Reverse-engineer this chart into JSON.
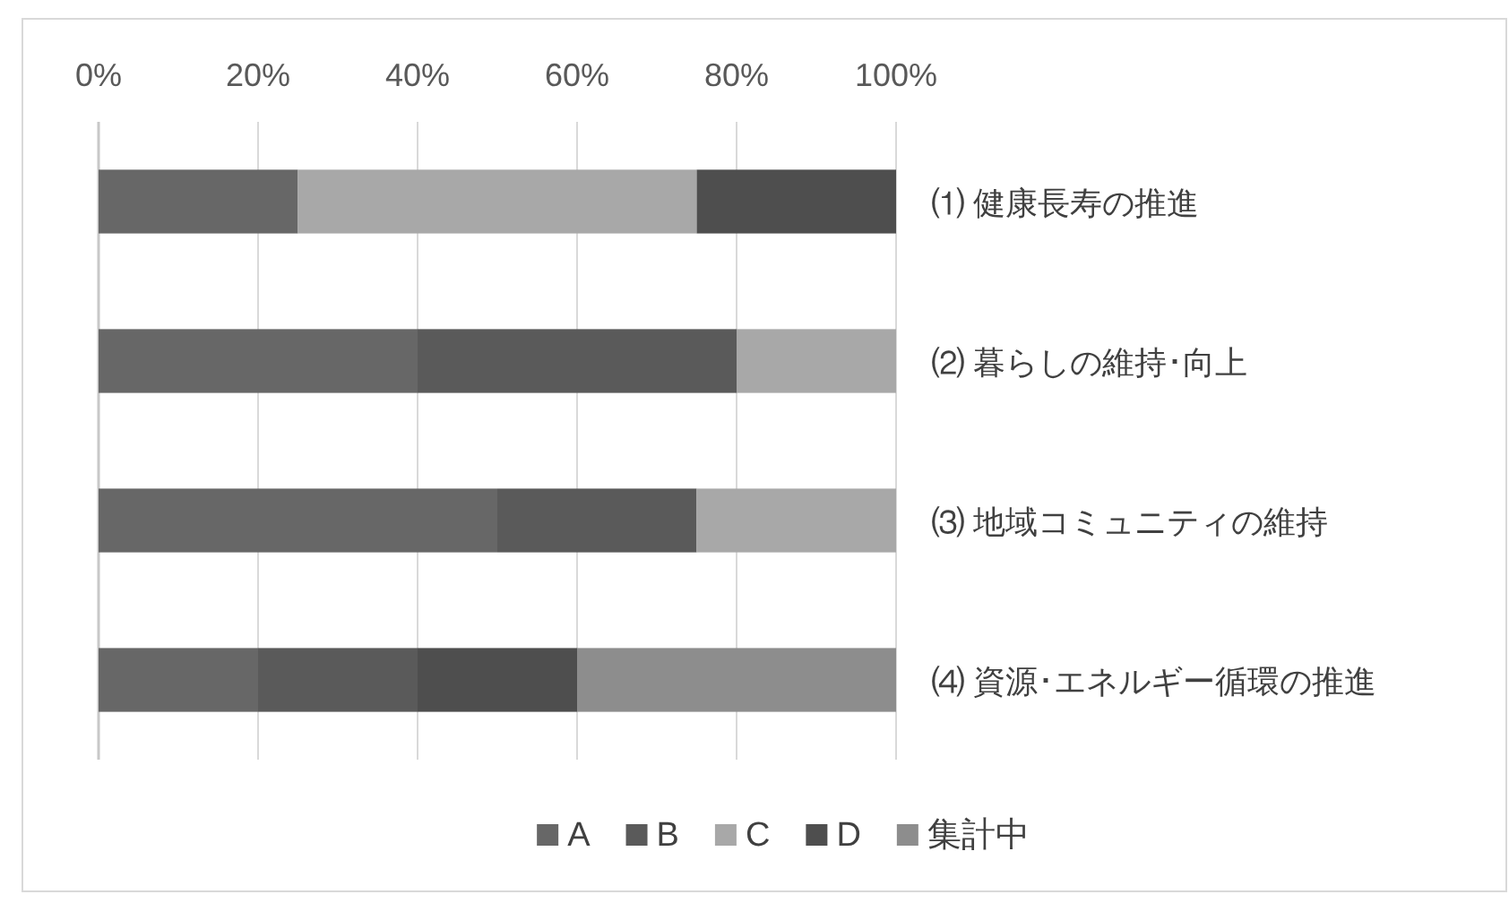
{
  "chart_data": {
    "type": "bar",
    "orientation": "horizontal",
    "stacked": true,
    "categories": [
      "⑴ 健康長寿の推進",
      "⑵ 暮らしの維持･向上",
      "⑶ 地域コミュニティの維持",
      "⑷ 資源･エネルギー循環の推進"
    ],
    "series": [
      {
        "name": "A",
        "color": "#676767",
        "values": [
          25,
          40,
          50,
          20
        ]
      },
      {
        "name": "B",
        "color": "#5a5a5a",
        "values": [
          0,
          40,
          25,
          20
        ]
      },
      {
        "name": "C",
        "color": "#a8a8a8",
        "values": [
          50,
          20,
          25,
          0
        ]
      },
      {
        "name": "D",
        "color": "#4e4e4e",
        "values": [
          25,
          0,
          0,
          20
        ]
      },
      {
        "name": "集計中",
        "color": "#8d8d8d",
        "values": [
          0,
          0,
          0,
          40
        ]
      }
    ],
    "xlim": [
      0,
      100
    ],
    "xticks": [
      {
        "value": 0,
        "label": "0%"
      },
      {
        "value": 20,
        "label": "20%"
      },
      {
        "value": 40,
        "label": "40%"
      },
      {
        "value": 60,
        "label": "60%"
      },
      {
        "value": 80,
        "label": "80%"
      },
      {
        "value": 100,
        "label": "100%"
      }
    ],
    "grid": "x",
    "legend": "bottom"
  }
}
